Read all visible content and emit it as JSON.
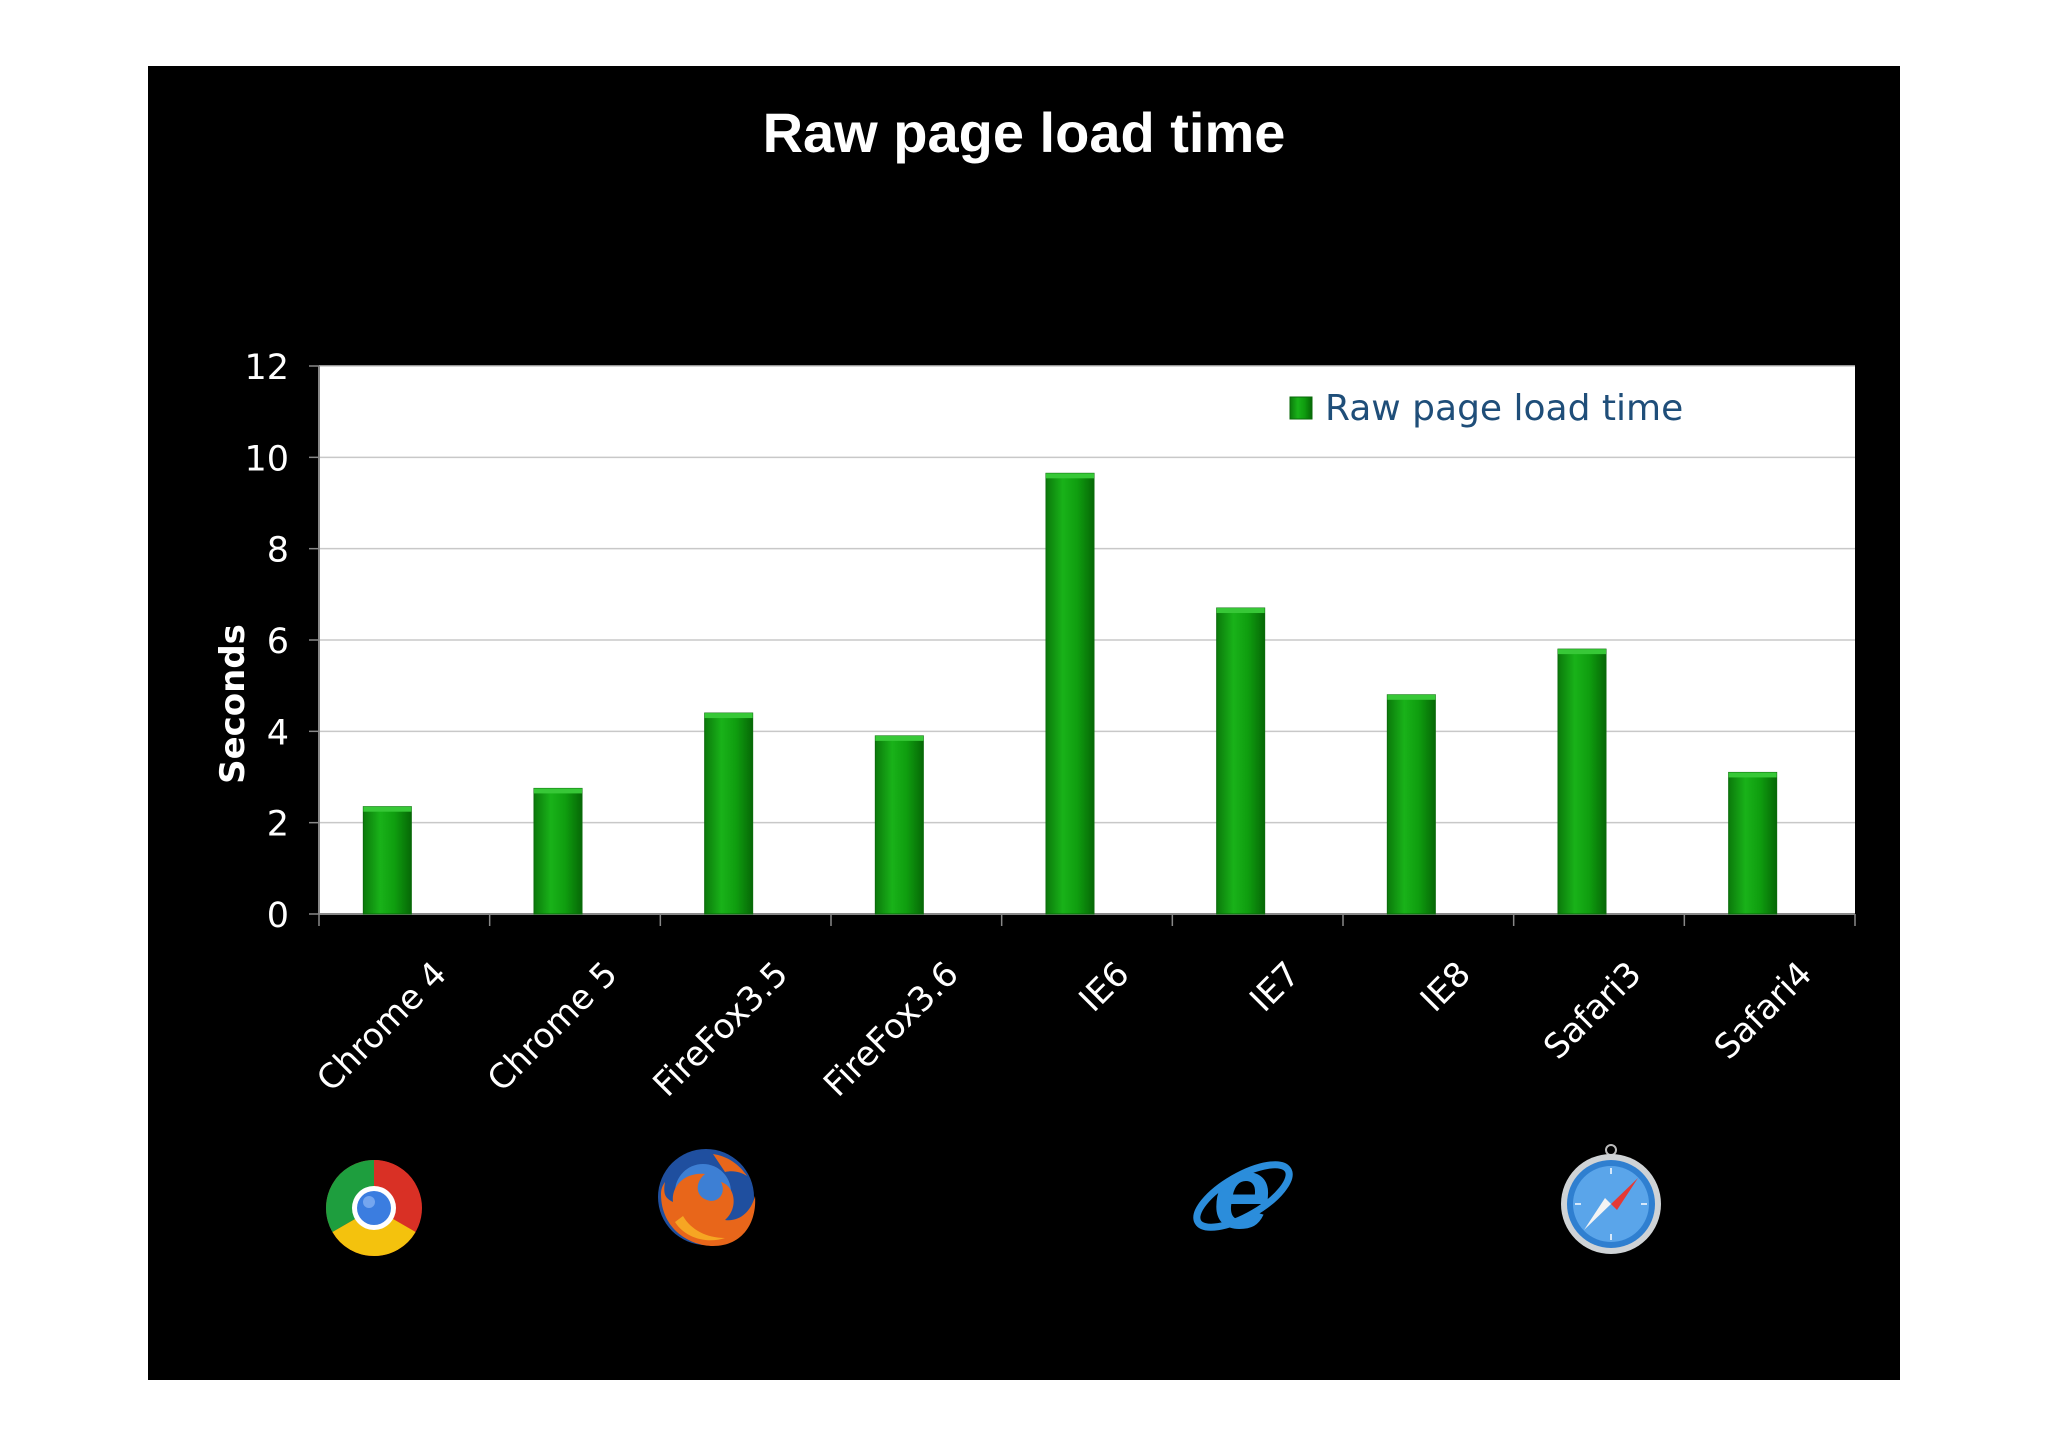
{
  "slide": {
    "title": "Raw page load time"
  },
  "chart_data": {
    "type": "bar",
    "title": "Raw page load time",
    "xlabel": "",
    "ylabel": "Seconds",
    "ylim": [
      0,
      12
    ],
    "yticks": [
      0,
      2,
      4,
      6,
      8,
      10,
      12
    ],
    "grid": true,
    "legend_position": "top-right",
    "categories": [
      "Chrome 4",
      "Chrome 5",
      "FireFox3.5",
      "FireFox3.6",
      "IE6",
      "IE7",
      "IE8",
      "Safari3",
      "Safari4"
    ],
    "series": [
      {
        "name": "Raw page load time",
        "color": "#0a9a0a",
        "values": [
          2.35,
          2.75,
          4.4,
          3.9,
          9.65,
          6.7,
          4.8,
          5.8,
          3.1
        ]
      }
    ]
  },
  "logos": [
    {
      "name": "chrome-logo-icon",
      "category": "Chrome 4"
    },
    {
      "name": "firefox-logo-icon",
      "category": "FireFox3.5"
    },
    {
      "name": "internet-explorer-logo-icon",
      "category": "IE7"
    },
    {
      "name": "safari-logo-icon",
      "category": "Safari3"
    }
  ]
}
